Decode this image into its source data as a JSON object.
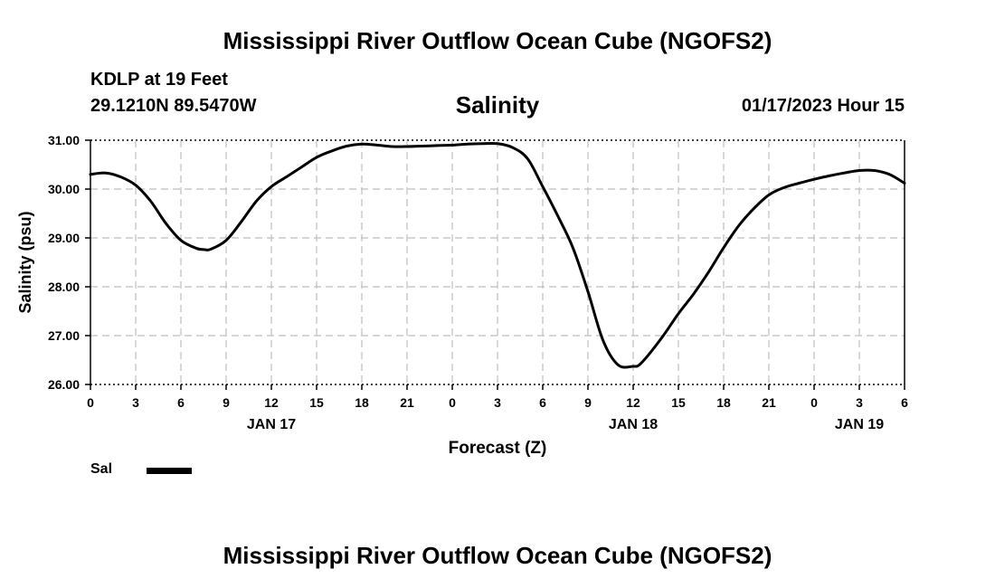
{
  "chart_data": {
    "type": "line",
    "title": "Salinity",
    "suptitle": "Mississippi River Outflow Ocean Cube (NGOFS2)",
    "footer_title": "Mississippi River Outflow Ocean Cube (NGOFS2)",
    "station": "KDLP at 19 Feet",
    "location": "29.1210N  89.5470W",
    "datetime": "01/17/2023 Hour 15",
    "xlabel": "Forecast (Z)",
    "ylabel": "Salinity (psu)",
    "xlim": [
      0,
      54
    ],
    "ylim": [
      26,
      31
    ],
    "y_ticks": [
      26,
      27,
      28,
      29,
      30,
      31
    ],
    "y_tick_labels": [
      "26.00",
      "27.00",
      "28.00",
      "29.00",
      "30.00",
      "31.00"
    ],
    "x_ticks": [
      0,
      3,
      6,
      9,
      12,
      15,
      18,
      21,
      24,
      27,
      30,
      33,
      36,
      39,
      42,
      45,
      48,
      51,
      54
    ],
    "x_tick_labels": [
      "0",
      "3",
      "6",
      "9",
      "12",
      "15",
      "18",
      "21",
      "0",
      "3",
      "6",
      "9",
      "12",
      "15",
      "18",
      "21",
      "0",
      "3",
      "6"
    ],
    "date_labels": [
      {
        "x": 12,
        "label": "JAN 17"
      },
      {
        "x": 36,
        "label": "JAN 18"
      },
      {
        "x": 51,
        "label": "JAN 19"
      }
    ],
    "grid": true,
    "series": [
      {
        "name": "Sal",
        "color": "#000000",
        "x": [
          0,
          1,
          2,
          3,
          4,
          5,
          6,
          7,
          7.6,
          8,
          9,
          10,
          11,
          12,
          13,
          14,
          15,
          16,
          17,
          18,
          19,
          20,
          21,
          22,
          23,
          24,
          25,
          26,
          27,
          28,
          29,
          30,
          31,
          32,
          33,
          34,
          35,
          36,
          36.4,
          37,
          38,
          39,
          40,
          41,
          42,
          43,
          44,
          45,
          46,
          47,
          48,
          49,
          50,
          51,
          52,
          53,
          54
        ],
        "values": [
          30.3,
          30.33,
          30.25,
          30.08,
          29.75,
          29.3,
          28.95,
          28.79,
          28.76,
          28.77,
          28.95,
          29.33,
          29.75,
          30.05,
          30.25,
          30.45,
          30.65,
          30.78,
          30.88,
          30.92,
          30.9,
          30.87,
          30.87,
          30.88,
          30.89,
          30.9,
          30.92,
          30.93,
          30.93,
          30.85,
          30.62,
          30.05,
          29.45,
          28.8,
          27.9,
          26.9,
          26.4,
          26.37,
          26.4,
          26.6,
          27.0,
          27.45,
          27.85,
          28.3,
          28.8,
          29.25,
          29.6,
          29.88,
          30.03,
          30.12,
          30.2,
          30.27,
          30.33,
          30.38,
          30.38,
          30.3,
          30.12
        ]
      }
    ]
  },
  "legend": {
    "label": "Sal"
  }
}
